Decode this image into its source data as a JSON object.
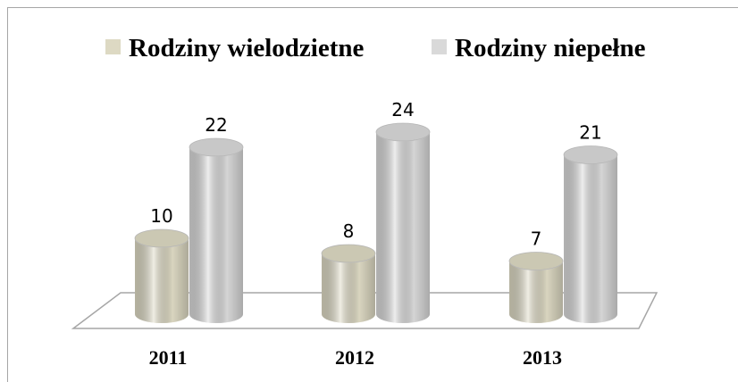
{
  "chart_data": {
    "type": "bar3d",
    "categories": [
      "2011",
      "2012",
      "2013"
    ],
    "series": [
      {
        "name": "Rodziny wielodzietne",
        "color": "#ddd9c3",
        "values": [
          10,
          8,
          7
        ]
      },
      {
        "name": "Rodziny niepełne",
        "color": "#d9d9d9",
        "values": [
          22,
          24,
          21
        ]
      }
    ]
  }
}
